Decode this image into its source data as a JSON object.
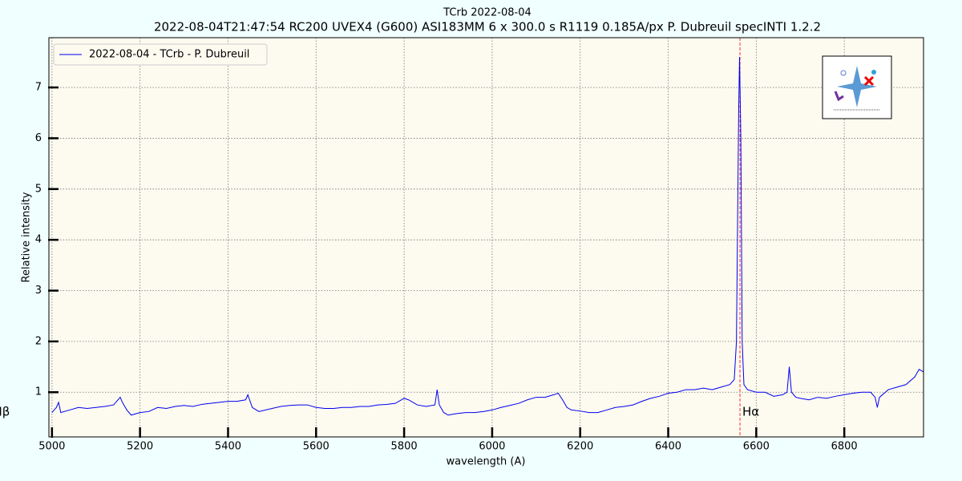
{
  "chart_data": {
    "type": "line",
    "title": "TCrb 2022-08-04",
    "subtitle": "2022-08-04T21:47:54 RC200 UVEX4 (G600)  ASI183MM 6 x 300.0 s   R1119  0.185A/px  P. Dubreuil specINTI 1.2.2",
    "x_label": "wavelength (A)",
    "y_label": "Relative intensity",
    "xlim": [
      4993,
      6980
    ],
    "ylim": [
      0.12,
      7.98
    ],
    "xticks": [
      5000,
      5200,
      5400,
      5600,
      5800,
      6000,
      6200,
      6400,
      6600,
      6800
    ],
    "yticks": [
      1,
      2,
      3,
      4,
      5,
      6,
      7
    ],
    "grid": true,
    "legend": "upper left",
    "x": [
      5000,
      5010,
      5015,
      5020,
      5040,
      5060,
      5080,
      5100,
      5120,
      5140,
      5155,
      5160,
      5170,
      5180,
      5200,
      5220,
      5240,
      5260,
      5280,
      5300,
      5320,
      5340,
      5360,
      5380,
      5400,
      5420,
      5440,
      5445,
      5455,
      5470,
      5500,
      5520,
      5540,
      5560,
      5580,
      5600,
      5620,
      5640,
      5660,
      5680,
      5700,
      5720,
      5740,
      5760,
      5780,
      5800,
      5810,
      5830,
      5850,
      5870,
      5875,
      5880,
      5890,
      5900,
      5920,
      5940,
      5960,
      5980,
      6000,
      6020,
      6040,
      6060,
      6080,
      6100,
      6120,
      6140,
      6150,
      6160,
      6170,
      6180,
      6200,
      6220,
      6240,
      6260,
      6280,
      6300,
      6320,
      6340,
      6360,
      6380,
      6400,
      6420,
      6440,
      6460,
      6480,
      6500,
      6520,
      6540,
      6550,
      6555,
      6560,
      6562,
      6565,
      6568,
      6572,
      6580,
      6600,
      6620,
      6640,
      6660,
      6670,
      6675,
      6680,
      6690,
      6700,
      6720,
      6740,
      6760,
      6780,
      6800,
      6820,
      6840,
      6860,
      6870,
      6875,
      6880,
      6900,
      6920,
      6940,
      6960,
      6970,
      6980
    ],
    "series": [
      {
        "name": "2022-08-04 - TCrb - P. Dubreuil",
        "color": "#0000ee",
        "values": [
          0.6,
          0.7,
          0.8,
          0.6,
          0.65,
          0.7,
          0.68,
          0.7,
          0.72,
          0.75,
          0.9,
          0.8,
          0.65,
          0.55,
          0.6,
          0.62,
          0.7,
          0.68,
          0.72,
          0.74,
          0.72,
          0.76,
          0.78,
          0.8,
          0.82,
          0.82,
          0.85,
          0.95,
          0.7,
          0.62,
          0.68,
          0.72,
          0.74,
          0.75,
          0.75,
          0.7,
          0.68,
          0.68,
          0.7,
          0.7,
          0.72,
          0.72,
          0.75,
          0.76,
          0.78,
          0.88,
          0.85,
          0.75,
          0.72,
          0.75,
          1.05,
          0.75,
          0.6,
          0.55,
          0.58,
          0.6,
          0.6,
          0.62,
          0.65,
          0.7,
          0.74,
          0.78,
          0.85,
          0.9,
          0.9,
          0.95,
          0.98,
          0.85,
          0.7,
          0.65,
          0.63,
          0.6,
          0.6,
          0.65,
          0.7,
          0.72,
          0.75,
          0.82,
          0.88,
          0.92,
          0.98,
          1,
          1.05,
          1.05,
          1.08,
          1.05,
          1.1,
          1.15,
          1.25,
          2,
          6.5,
          7.6,
          6,
          2,
          1.15,
          1.05,
          1,
          1,
          0.92,
          0.95,
          1,
          1.5,
          1,
          0.9,
          0.88,
          0.85,
          0.9,
          0.88,
          0.92,
          0.95,
          0.98,
          1,
          1,
          0.9,
          0.7,
          0.9,
          1.05,
          1.1,
          1.15,
          1.3,
          1.45,
          1.4
        ]
      }
    ],
    "annotations": [
      {
        "label": "Hα",
        "x": 6563,
        "color": "#ff0000"
      },
      {
        "label": "Hβ",
        "x": 4861,
        "color": "#ff0000"
      }
    ]
  }
}
